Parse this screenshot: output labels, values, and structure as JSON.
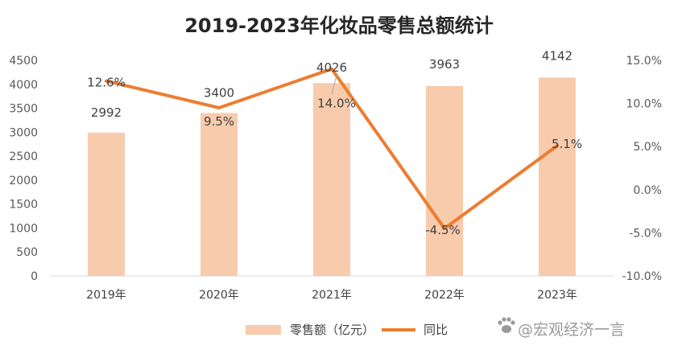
{
  "chart_data": {
    "type": "bar",
    "title": "2019-2023年化妆品零售总额统计",
    "categories": [
      "2019年",
      "2020年",
      "2021年",
      "2022年",
      "2023年"
    ],
    "series": [
      {
        "name": "零售额（亿元）",
        "type": "bar",
        "axis": "left",
        "values": [
          2992,
          3400,
          4026,
          3963,
          4142
        ],
        "labels": [
          "2992",
          "3400",
          "4026",
          "3963",
          "4142"
        ],
        "color": "#F8CBAD"
      },
      {
        "name": "同比",
        "type": "line",
        "axis": "right",
        "values": [
          12.6,
          9.5,
          14.0,
          -4.5,
          5.1
        ],
        "labels": [
          "12.6%",
          "9.5%",
          "14.0%",
          "-4.5%",
          "5.1%"
        ],
        "color": "#ED7D31"
      }
    ],
    "y_left": {
      "lim": [
        0,
        4500
      ],
      "ticks": [
        "0",
        "500",
        "1000",
        "1500",
        "2000",
        "2500",
        "3000",
        "3500",
        "4000",
        "4500"
      ]
    },
    "y_right": {
      "lim": [
        -10,
        15
      ],
      "ticks": [
        "-10.0%",
        "-5.0%",
        "0.0%",
        "5.0%",
        "10.0%",
        "15.0%"
      ]
    },
    "grid": false,
    "legend_position": "bottom"
  },
  "watermark": {
    "text": "@宏观经济一言",
    "icon": "paw-icon"
  }
}
